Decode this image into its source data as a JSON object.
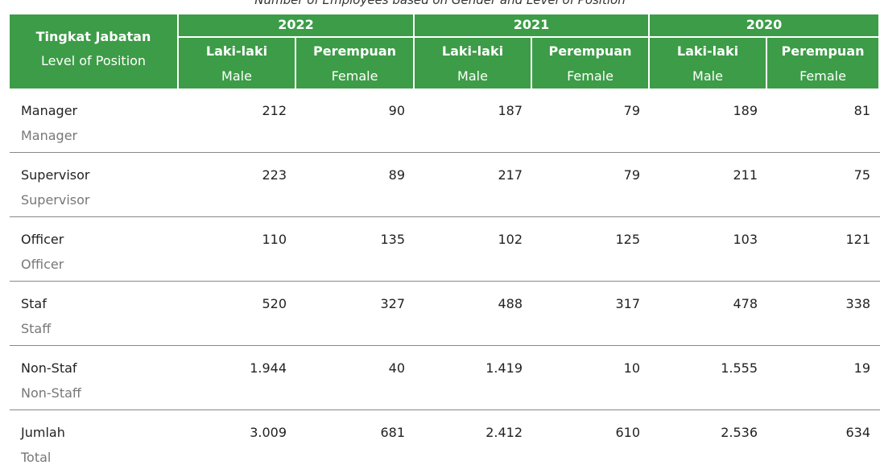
{
  "caption": "Number of Employees based on Gender and Level of Position",
  "header": {
    "position": {
      "id": "Tingkat Jabatan",
      "en": "Level of Position"
    },
    "years": [
      "2022",
      "2021",
      "2020"
    ],
    "genders": [
      {
        "id": "Laki-laki",
        "en": "Male"
      },
      {
        "id": "Perempuan",
        "en": "Female"
      }
    ]
  },
  "rows": [
    {
      "id": "Manager",
      "en": "Manager",
      "values": [
        "212",
        "90",
        "187",
        "79",
        "189",
        "81"
      ]
    },
    {
      "id": "Supervisor",
      "en": "Supervisor",
      "values": [
        "223",
        "89",
        "217",
        "79",
        "211",
        "75"
      ]
    },
    {
      "id": "Officer",
      "en": "Officer",
      "values": [
        "110",
        "135",
        "102",
        "125",
        "103",
        "121"
      ]
    },
    {
      "id": "Staf",
      "en": "Staff",
      "values": [
        "520",
        "327",
        "488",
        "317",
        "478",
        "338"
      ]
    },
    {
      "id": "Non-Staf",
      "en": "Non-Staff",
      "values": [
        "1.944",
        "40",
        "1.419",
        "10",
        "1.555",
        "19"
      ]
    },
    {
      "id": "Jumlah",
      "en": "Total",
      "values": [
        "3.009",
        "681",
        "2.412",
        "610",
        "2.536",
        "634"
      ]
    }
  ]
}
